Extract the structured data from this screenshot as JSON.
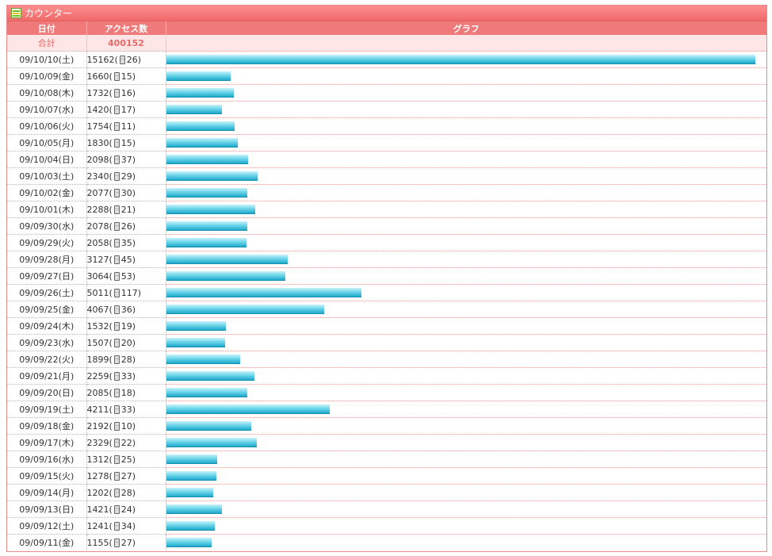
{
  "panel": {
    "title": "カウンター",
    "icon": "counter-icon"
  },
  "headers": {
    "date": "日付",
    "access": "アクセス数",
    "graph": "グラフ"
  },
  "total": {
    "label": "合計",
    "value": "400152"
  },
  "colors": {
    "header": "#f07a7a",
    "total_bg": "#ffe6e6",
    "bar": "#3fbfd9"
  },
  "chart_data": {
    "type": "bar",
    "orientation": "horizontal",
    "xlim": [
      0,
      15162
    ],
    "categories": [
      "09/10/10(土)",
      "09/10/09(金)",
      "09/10/08(木)",
      "09/10/07(水)",
      "09/10/06(火)",
      "09/10/05(月)",
      "09/10/04(日)",
      "09/10/03(土)",
      "09/10/02(金)",
      "09/10/01(木)",
      "09/09/30(水)",
      "09/09/29(火)",
      "09/09/28(月)",
      "09/09/27(日)",
      "09/09/26(土)",
      "09/09/25(金)",
      "09/09/24(木)",
      "09/09/23(水)",
      "09/09/22(火)",
      "09/09/21(月)",
      "09/09/20(日)",
      "09/09/19(土)",
      "09/09/18(金)",
      "09/09/17(木)",
      "09/09/16(水)",
      "09/09/15(火)",
      "09/09/14(月)",
      "09/09/13(日)",
      "09/09/12(土)",
      "09/09/11(金)"
    ],
    "values": [
      15162,
      1660,
      1732,
      1420,
      1754,
      1830,
      2098,
      2340,
      2077,
      2288,
      2078,
      2058,
      3127,
      3064,
      5011,
      4067,
      1532,
      1507,
      1899,
      2259,
      2085,
      4211,
      2192,
      2329,
      1312,
      1278,
      1202,
      1421,
      1241,
      1155
    ],
    "mobile": [
      26,
      15,
      16,
      17,
      11,
      15,
      37,
      29,
      30,
      21,
      26,
      35,
      45,
      53,
      117,
      36,
      19,
      20,
      28,
      33,
      18,
      33,
      10,
      22,
      25,
      27,
      28,
      24,
      34,
      27
    ]
  }
}
